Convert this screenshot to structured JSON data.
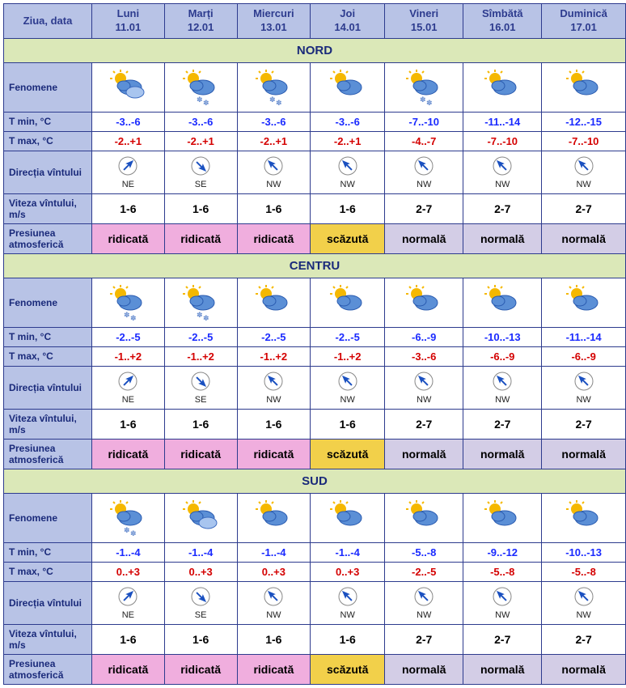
{
  "headers": {
    "rowLabel": "Ziua, data",
    "days": [
      {
        "name": "Luni",
        "date": "11.01"
      },
      {
        "name": "Marți",
        "date": "12.01"
      },
      {
        "name": "Miercuri",
        "date": "13.01"
      },
      {
        "name": "Joi",
        "date": "14.01"
      },
      {
        "name": "Vineri",
        "date": "15.01"
      },
      {
        "name": "Sîmbătă",
        "date": "16.01"
      },
      {
        "name": "Duminică",
        "date": "17.01"
      }
    ]
  },
  "rowLabels": {
    "fenomene": "Fenomene",
    "tmin": "T min, °C",
    "tmax": "T max, °C",
    "dir": "Direcția vîntului",
    "speed": "Viteza vîntului, m/s",
    "pressure": "Presiunea atmosferică"
  },
  "regions": [
    {
      "name": "NORD",
      "fenomene": [
        "sun-cloud-double",
        "sun-cloud-snow",
        "sun-cloud-snow",
        "sun-cloud",
        "sun-cloud-snow",
        "sun-cloud",
        "sun-cloud"
      ],
      "tmin": [
        "-3..-6",
        "-3..-6",
        "-3..-6",
        "-3..-6",
        "-7..-10",
        "-11..-14",
        "-12..-15"
      ],
      "tmax": [
        "-2..+1",
        "-2..+1",
        "-2..+1",
        "-2..+1",
        "-4..-7",
        "-7..-10",
        "-7..-10"
      ],
      "dirIcon": [
        "NE",
        "SE",
        "NW",
        "NW",
        "NW",
        "NW",
        "NW"
      ],
      "dirLabel": [
        "NE",
        "SE",
        "NW",
        "NW",
        "NW",
        "NW",
        "NW"
      ],
      "speed": [
        "1-6",
        "1-6",
        "1-6",
        "1-6",
        "2-7",
        "2-7",
        "2-7"
      ],
      "pressure": [
        "ridicată",
        "ridicată",
        "ridicată",
        "scăzută",
        "normală",
        "normală",
        "normală"
      ],
      "pressureClass": [
        "press-ridicata",
        "press-ridicata",
        "press-ridicata",
        "press-scazuta",
        "press-normala",
        "press-normala",
        "press-normala"
      ]
    },
    {
      "name": "CENTRU",
      "fenomene": [
        "sun-cloud-snow",
        "sun-cloud-snow",
        "sun-cloud",
        "sun-cloud",
        "sun-cloud",
        "sun-cloud",
        "sun-cloud"
      ],
      "tmin": [
        "-2..-5",
        "-2..-5",
        "-2..-5",
        "-2..-5",
        "-6..-9",
        "-10..-13",
        "-11..-14"
      ],
      "tmax": [
        "-1..+2",
        "-1..+2",
        "-1..+2",
        "-1..+2",
        "-3..-6",
        "-6..-9",
        "-6..-9"
      ],
      "dirIcon": [
        "NE",
        "SE",
        "NW",
        "NW",
        "NW",
        "NW",
        "NW"
      ],
      "dirLabel": [
        "NE",
        "SE",
        "NW",
        "NW",
        "NW",
        "NW",
        "NW"
      ],
      "speed": [
        "1-6",
        "1-6",
        "1-6",
        "1-6",
        "2-7",
        "2-7",
        "2-7"
      ],
      "pressure": [
        "ridicată",
        "ridicată",
        "ridicată",
        "scăzută",
        "normală",
        "normală",
        "normală"
      ],
      "pressureClass": [
        "press-ridicata",
        "press-ridicata",
        "press-ridicata",
        "press-scazuta",
        "press-normala",
        "press-normala",
        "press-normala"
      ]
    },
    {
      "name": "SUD",
      "fenomene": [
        "sun-cloud-snow",
        "sun-cloud-double",
        "sun-cloud",
        "sun-cloud",
        "sun-cloud",
        "sun-cloud",
        "sun-cloud"
      ],
      "tmin": [
        "-1..-4",
        "-1..-4",
        "-1..-4",
        "-1..-4",
        "-5..-8",
        "-9..-12",
        "-10..-13"
      ],
      "tmax": [
        "0..+3",
        "0..+3",
        "0..+3",
        "0..+3",
        "-2..-5",
        "-5..-8",
        "-5..-8"
      ],
      "dirIcon": [
        "NE",
        "SE",
        "NW",
        "NW",
        "NW",
        "NW",
        "NW"
      ],
      "dirLabel": [
        "NE",
        "SE",
        "NW",
        "NW",
        "NW",
        "NW",
        "NW"
      ],
      "speed": [
        "1-6",
        "1-6",
        "1-6",
        "1-6",
        "2-7",
        "2-7",
        "2-7"
      ],
      "pressure": [
        "ridicată",
        "ridicată",
        "ridicată",
        "scăzută",
        "normală",
        "normală",
        "normală"
      ],
      "pressureClass": [
        "press-ridicata",
        "press-ridicata",
        "press-ridicata",
        "press-scazuta",
        "press-normala",
        "press-normala",
        "press-normala"
      ]
    }
  ],
  "colors": {
    "headerBg": "#b8c3e6",
    "regionBg": "#dbe8b8",
    "border": "#2d3b8e",
    "tmin": "#1a2aff",
    "tmax": "#d40000",
    "ridicata": "#f0aede",
    "scazuta": "#f2d04a",
    "normala": "#d3cde6",
    "sun": "#f5b800",
    "cloud": "#5b8fd6",
    "cloudLight": "#a8c5ef",
    "arrowBlue": "#1a50c0"
  },
  "arrowAngles": {
    "NE": 45,
    "SE": 135,
    "NW": -45,
    "SW": -135,
    "N": 0,
    "S": 180,
    "E": 90,
    "W": -90
  }
}
